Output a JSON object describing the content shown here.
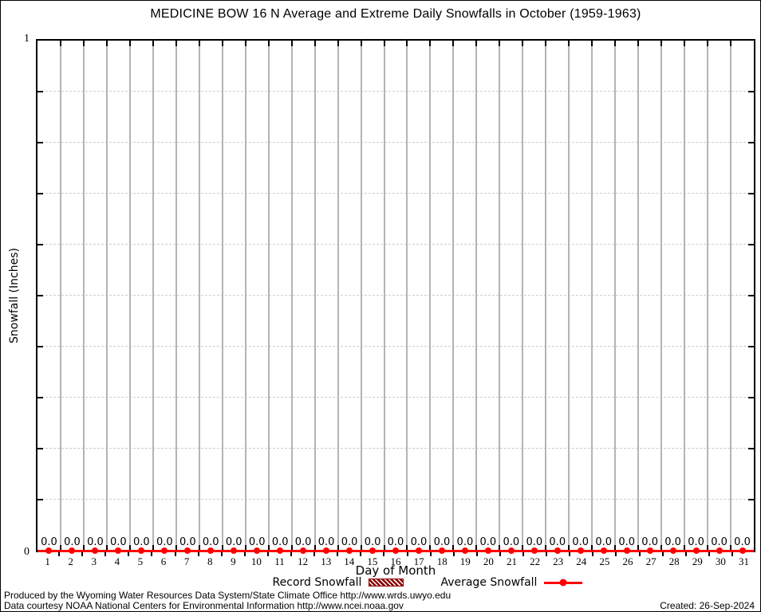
{
  "chart_data": {
    "type": "line",
    "title": "MEDICINE BOW 16 N Average and Extreme Daily Snowfalls in October (1959-1963)",
    "xlabel": "Day of Month",
    "ylabel": "Snowfall (Inches)",
    "xlim": [
      0.5,
      31.5
    ],
    "ylim": [
      0,
      1
    ],
    "ytick_step": 0.1,
    "ytick_labels_shown": {
      "top": "1",
      "bottom": "0"
    },
    "grid": {
      "vertical_lines": "solid",
      "horizontal_lines": "dashed",
      "legend_position": "bottom-center"
    },
    "x": [
      1,
      2,
      3,
      4,
      5,
      6,
      7,
      8,
      9,
      10,
      11,
      12,
      13,
      14,
      15,
      16,
      17,
      18,
      19,
      20,
      21,
      22,
      23,
      24,
      25,
      26,
      27,
      28,
      29,
      30,
      31
    ],
    "series": [
      {
        "name": "Record Snowfall",
        "style": "hatched-boxes",
        "color": "#8b0000",
        "values": [
          0,
          0,
          0,
          0,
          0,
          0,
          0,
          0,
          0,
          0,
          0,
          0,
          0,
          0,
          0,
          0,
          0,
          0,
          0,
          0,
          0,
          0,
          0,
          0,
          0,
          0,
          0,
          0,
          0,
          0,
          0
        ]
      },
      {
        "name": "Average Snowfall",
        "style": "line-with-points",
        "color": "#ff0000",
        "values": [
          0,
          0,
          0,
          0,
          0,
          0,
          0,
          0,
          0,
          0,
          0,
          0,
          0,
          0,
          0,
          0,
          0,
          0,
          0,
          0,
          0,
          0,
          0,
          0,
          0,
          0,
          0,
          0,
          0,
          0,
          0
        ]
      }
    ],
    "point_labels": [
      "0.0",
      "0.0",
      "0.0",
      "0.0",
      "0.0",
      "0.0",
      "0.0",
      "0.0",
      "0.0",
      "0.0",
      "0.0",
      "0.0",
      "0.0",
      "0.0",
      "0.0",
      "0.0",
      "0.0",
      "0.0",
      "0.0",
      "0.0",
      "0.0",
      "0.0",
      "0.0",
      "0.0",
      "0.0",
      "0.0",
      "0.0",
      "0.0",
      "0.0",
      "0.0",
      "0.0"
    ]
  },
  "colors": {
    "average_line": "#ff0000",
    "record_fill": "#8b0000",
    "grid_vertical": "#b4b4b4",
    "grid_horizontal": "#cdcdcd",
    "axis": "#000000"
  },
  "footer": {
    "line1": "Produced by the Wyoming Water Resources Data System/State Climate Office http://www.wrds.uwyo.edu",
    "line2": "Data courtesy NOAA National Centers for Environmental Information http://www.ncei.noaa.gov",
    "created": "Created: 26-Sep-2024"
  }
}
